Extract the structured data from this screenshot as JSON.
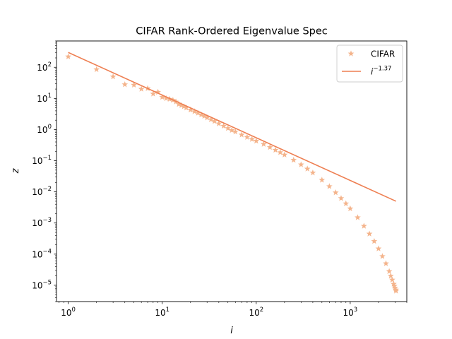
{
  "chart_data": {
    "type": "scatter",
    "title": "CIFAR Rank-Ordered Eigenvalue Spec",
    "xlabel": "i",
    "ylabel": "z",
    "xscale": "log",
    "yscale": "log",
    "xlim": [
      0.75,
      4000
    ],
    "ylim": [
      3e-06,
      700
    ],
    "xticks": [
      {
        "value": 1,
        "base": "10",
        "exp": "0"
      },
      {
        "value": 10,
        "base": "10",
        "exp": "1"
      },
      {
        "value": 100,
        "base": "10",
        "exp": "2"
      },
      {
        "value": 1000,
        "base": "10",
        "exp": "3"
      }
    ],
    "yticks": [
      {
        "value": 1e-05,
        "base": "10",
        "exp": "−5"
      },
      {
        "value": 0.0001,
        "base": "10",
        "exp": "−4"
      },
      {
        "value": 0.001,
        "base": "10",
        "exp": "−3"
      },
      {
        "value": 0.01,
        "base": "10",
        "exp": "−2"
      },
      {
        "value": 0.1,
        "base": "10",
        "exp": "−1"
      },
      {
        "value": 1,
        "base": "10",
        "exp": "0"
      },
      {
        "value": 10,
        "base": "10",
        "exp": "1"
      },
      {
        "value": 100,
        "base": "10",
        "exp": "2"
      }
    ],
    "legend_position": "top-right",
    "grid": false,
    "series": [
      {
        "name": "CIFAR",
        "kind": "scatter",
        "marker": "star",
        "color": "#f4b48c",
        "x": [
          1,
          2,
          3,
          4,
          5,
          6,
          7,
          8,
          9,
          10,
          11,
          12,
          13,
          14,
          15,
          16,
          17,
          18,
          20,
          22,
          24,
          26,
          28,
          30,
          33,
          36,
          40,
          45,
          50,
          55,
          60,
          70,
          80,
          90,
          100,
          120,
          140,
          160,
          180,
          200,
          250,
          300,
          350,
          400,
          500,
          600,
          700,
          800,
          900,
          1000,
          1200,
          1400,
          1600,
          1800,
          2000,
          2200,
          2400,
          2600,
          2700,
          2800,
          2900,
          2950,
          3000,
          3050,
          3072
        ],
        "y": [
          220,
          85,
          50,
          28,
          27,
          20,
          21,
          14,
          16,
          11,
          10,
          9.5,
          8.8,
          7.8,
          6.5,
          6.0,
          5.5,
          5.0,
          4.3,
          3.8,
          3.4,
          3.0,
          2.7,
          2.4,
          2.1,
          1.85,
          1.55,
          1.3,
          1.1,
          0.95,
          0.85,
          0.68,
          0.57,
          0.49,
          0.43,
          0.34,
          0.27,
          0.22,
          0.185,
          0.155,
          0.105,
          0.075,
          0.055,
          0.041,
          0.024,
          0.015,
          0.0095,
          0.0062,
          0.0042,
          0.0029,
          0.0015,
          0.0008,
          0.00045,
          0.00026,
          0.00015,
          8.5e-05,
          5e-05,
          2.8e-05,
          2e-05,
          1.5e-05,
          1.1e-05,
          9.5e-06,
          8.2e-06,
          7.2e-06,
          6.6e-06
        ]
      },
      {
        "name": "i^{-1.37}",
        "kind": "line",
        "color": "#ee7f52",
        "legend_base": "i",
        "legend_exp": "−1.37",
        "x": [
          1,
          3072
        ],
        "y": [
          300,
          0.005
        ]
      }
    ]
  }
}
